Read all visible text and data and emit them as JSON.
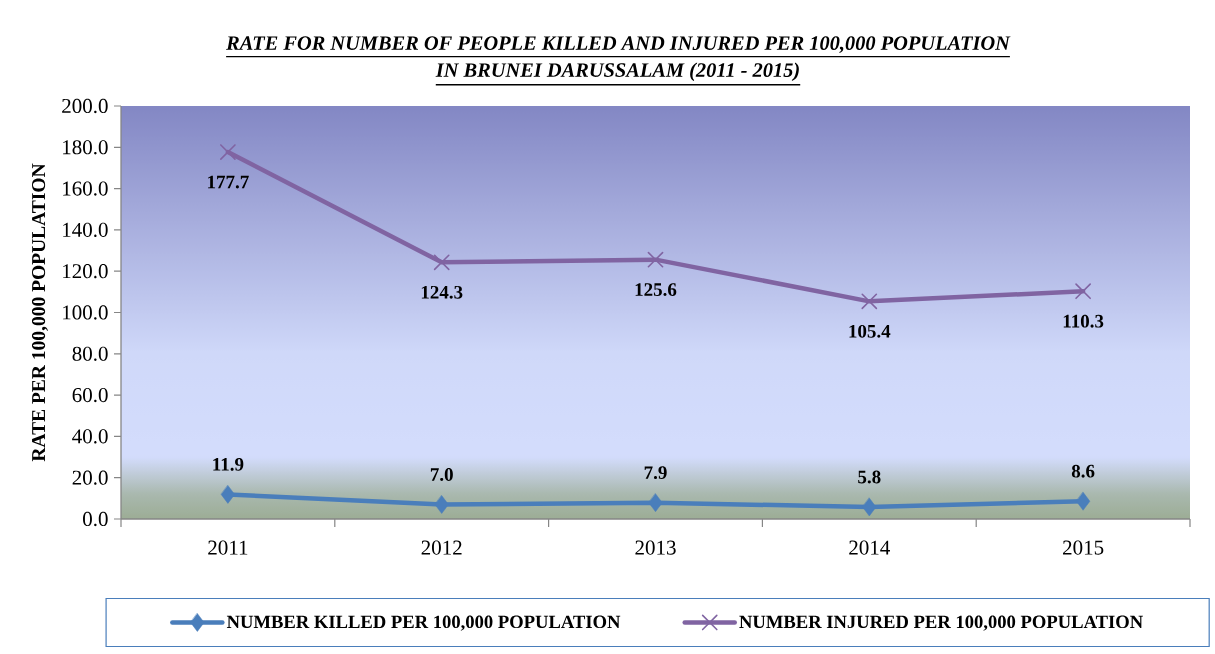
{
  "chart_data": {
    "type": "line",
    "title": "RATE FOR NUMBER OF PEOPLE KILLED AND INJURED PER 100,000 POPULATION IN BRUNEI DARUSSALAM (2011 - 2015)",
    "ylabel": "RATE PER 100,000 POPULATION",
    "categories": [
      "2011",
      "2012",
      "2013",
      "2014",
      "2015"
    ],
    "series": [
      {
        "name": "NUMBER KILLED PER 100,000 POPULATION",
        "color": "#4a7ebb",
        "marker": "diamond",
        "values": [
          11.9,
          7.0,
          7.9,
          5.8,
          8.6
        ],
        "value_labels": [
          "11.9",
          "7.0",
          "7.9",
          "5.8",
          "8.6"
        ]
      },
      {
        "name": "NUMBER INJURED PER 100,000 POPULATION",
        "color": "#8064a2",
        "marker": "cross",
        "values": [
          177.7,
          124.3,
          125.6,
          105.4,
          110.3
        ],
        "value_labels": [
          "177.7",
          "124.3",
          "125.6",
          "105.4",
          "110.3"
        ]
      }
    ],
    "ylim": [
      0,
      200
    ],
    "yticks": [
      {
        "value": 0,
        "label": "0.0"
      },
      {
        "value": 20,
        "label": "20.0"
      },
      {
        "value": 40,
        "label": "40.0"
      },
      {
        "value": 60,
        "label": "60.0"
      },
      {
        "value": 80,
        "label": "80.0"
      },
      {
        "value": 100,
        "label": "100.0"
      },
      {
        "value": 120,
        "label": "120.0"
      },
      {
        "value": 140,
        "label": "140.0"
      },
      {
        "value": 160,
        "label": "160.0"
      },
      {
        "value": 180,
        "label": "180.0"
      },
      {
        "value": 200,
        "label": "200.0"
      }
    ],
    "legend": "bottom"
  }
}
